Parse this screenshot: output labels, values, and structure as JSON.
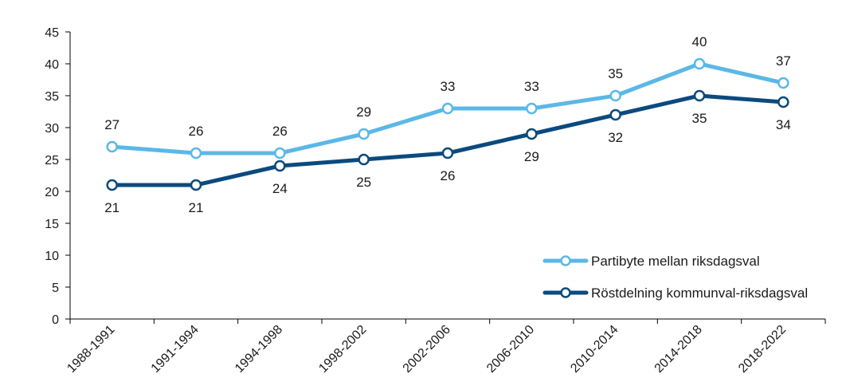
{
  "chart_data": {
    "type": "line",
    "title": "",
    "xlabel": "",
    "ylabel": "",
    "categories": [
      "1988-1991",
      "1991-1994",
      "1994-1998",
      "1998-2002",
      "2002-2006",
      "2006-2010",
      "2010-2014",
      "2014-2018",
      "2018-2022"
    ],
    "ylim": [
      0,
      45
    ],
    "yticks": [
      0,
      5,
      10,
      15,
      20,
      25,
      30,
      35,
      40,
      45
    ],
    "grid": false,
    "legend_position": "right",
    "series": [
      {
        "name": "Partibyte mellan riksdagsval",
        "color": "#5bb8e6",
        "values": [
          27,
          26,
          26,
          29,
          33,
          33,
          35,
          40,
          37
        ],
        "label_position": "above"
      },
      {
        "name": "Röstdelning kommunval-riksdagsval",
        "color": "#0b4a7e",
        "values": [
          21,
          21,
          24,
          25,
          26,
          29,
          32,
          35,
          34
        ],
        "label_position": "below"
      }
    ]
  }
}
